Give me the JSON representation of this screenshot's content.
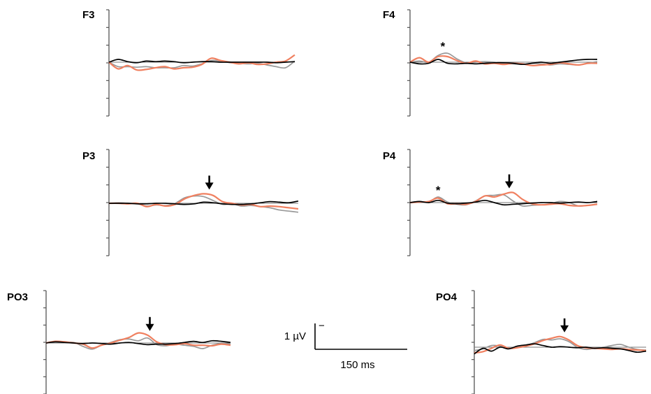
{
  "chart_data": [
    {
      "type": "line",
      "title": "F3",
      "x_unit": "ms",
      "y_unit": "µV",
      "x": [
        0,
        20,
        40,
        60,
        80,
        100,
        120,
        140,
        160,
        180,
        200,
        220,
        240,
        260,
        280,
        300,
        320,
        340,
        360,
        380,
        400
      ],
      "series": [
        {
          "color": "#000000",
          "values": [
            0.0,
            0.5,
            0.1,
            -0.1,
            0.2,
            0.1,
            0.2,
            0.1,
            -0.1,
            0.0,
            0.1,
            0.1,
            0.0,
            0.0,
            0.0,
            0.0,
            0.0,
            0.0,
            -0.1,
            0.0,
            0.1
          ]
        },
        {
          "color": "#f08060",
          "values": [
            0.0,
            -1.2,
            -0.6,
            -1.4,
            -1.3,
            -1.0,
            -0.8,
            -1.2,
            -1.0,
            -0.9,
            -0.4,
            0.7,
            0.3,
            0.0,
            -0.3,
            -0.1,
            -0.4,
            -0.3,
            0.0,
            0.2,
            1.3
          ]
        },
        {
          "color": "#999999",
          "values": [
            0.0,
            -0.8,
            -0.8,
            -0.9,
            -0.8,
            -1.0,
            -1.0,
            -1.0,
            -0.6,
            -0.7,
            -0.3,
            0.3,
            0.2,
            -0.1,
            -0.2,
            -0.3,
            -0.2,
            -0.5,
            -0.8,
            -1.0,
            0.2
          ]
        }
      ],
      "ylim": [
        -6,
        6
      ],
      "annotations": []
    },
    {
      "type": "line",
      "title": "F4",
      "x_unit": "ms",
      "y_unit": "µV",
      "x": [
        0,
        20,
        40,
        60,
        80,
        100,
        120,
        140,
        160,
        180,
        200,
        220,
        240,
        260,
        280,
        300,
        320,
        340,
        360,
        380,
        400
      ],
      "series": [
        {
          "color": "#000000",
          "values": [
            0.0,
            -0.3,
            -0.2,
            0.5,
            -0.2,
            -0.3,
            -0.2,
            -0.3,
            -0.2,
            -0.1,
            -0.1,
            -0.2,
            -0.4,
            -0.2,
            0.0,
            -0.2,
            0.0,
            0.2,
            0.4,
            0.5,
            0.5
          ]
        },
        {
          "color": "#f08060",
          "values": [
            0.0,
            0.8,
            0.0,
            1.0,
            1.0,
            0.3,
            -0.2,
            0.2,
            -0.3,
            -0.2,
            -0.4,
            -0.2,
            -0.3,
            -0.6,
            -0.5,
            -0.4,
            -0.1,
            -0.3,
            -0.5,
            -0.2,
            -0.2
          ]
        },
        {
          "color": "#999999",
          "values": [
            0.0,
            0.2,
            0.0,
            1.2,
            1.6,
            0.6,
            -0.1,
            0.0,
            0.1,
            0.0,
            -0.3,
            -0.3,
            -0.4,
            -0.2,
            -0.3,
            -0.5,
            -0.3,
            -0.4,
            -0.5,
            -0.2,
            0.1
          ]
        }
      ],
      "ylim": [
        -6,
        6
      ],
      "annotations": [
        {
          "text": "*",
          "x": 70
        }
      ]
    },
    {
      "type": "line",
      "title": "P3",
      "x_unit": "ms",
      "y_unit": "µV",
      "x": [
        0,
        20,
        40,
        60,
        80,
        100,
        120,
        140,
        160,
        180,
        200,
        220,
        240,
        260,
        280,
        300,
        320,
        340,
        360,
        380,
        400
      ],
      "series": [
        {
          "color": "#000000",
          "values": [
            0.0,
            0.0,
            0.0,
            -0.1,
            -0.1,
            0.0,
            0.0,
            -0.1,
            -0.2,
            -0.1,
            0.2,
            0.1,
            -0.1,
            -0.2,
            -0.2,
            -0.1,
            0.1,
            0.3,
            0.2,
            0.1,
            0.4
          ]
        },
        {
          "color": "#f08060",
          "values": [
            0.0,
            0.0,
            -0.1,
            0.0,
            -0.6,
            -0.2,
            -0.5,
            -0.2,
            0.8,
            1.4,
            1.7,
            1.4,
            0.3,
            0.0,
            -0.3,
            -0.2,
            -0.6,
            -0.5,
            -0.6,
            -0.8,
            -1.0
          ]
        },
        {
          "color": "#999999",
          "values": [
            0.0,
            0.1,
            0.0,
            -0.1,
            -0.5,
            -0.3,
            -0.4,
            0.0,
            1.0,
            1.3,
            1.2,
            0.5,
            -0.2,
            -0.1,
            -0.5,
            -0.4,
            -0.6,
            -0.8,
            -1.2,
            -1.4,
            -1.6
          ]
        }
      ],
      "ylim": [
        -6,
        6
      ],
      "annotations": [
        {
          "text": "arrow",
          "x": 212
        }
      ]
    },
    {
      "type": "line",
      "title": "P4",
      "x_unit": "ms",
      "y_unit": "µV",
      "x": [
        0,
        20,
        40,
        60,
        80,
        100,
        120,
        140,
        160,
        180,
        200,
        220,
        240,
        260,
        280,
        300,
        320,
        340,
        360,
        380,
        400
      ],
      "series": [
        {
          "color": "#000000",
          "values": [
            0.0,
            0.2,
            0.0,
            0.4,
            -0.1,
            -0.2,
            -0.1,
            0.1,
            0.4,
            0.0,
            -0.4,
            -0.3,
            -0.2,
            -0.1,
            0.0,
            0.0,
            -0.1,
            0.0,
            0.1,
            0.0,
            0.2
          ]
        },
        {
          "color": "#f08060",
          "values": [
            0.0,
            0.1,
            0.2,
            0.8,
            -0.2,
            -0.2,
            -0.3,
            0.2,
            1.2,
            1.0,
            1.5,
            1.8,
            0.6,
            -0.2,
            -0.4,
            -0.3,
            -0.2,
            -0.5,
            -0.6,
            -0.5,
            -0.3
          ]
        },
        {
          "color": "#999999",
          "values": [
            0.0,
            0.2,
            0.1,
            1.0,
            0.1,
            -0.3,
            -0.4,
            0.3,
            1.2,
            1.3,
            1.4,
            0.3,
            -0.6,
            -0.5,
            -0.4,
            -0.2,
            0.2,
            0.0,
            -0.6,
            -0.5,
            -0.3
          ]
        }
      ],
      "ylim": [
        -6,
        6
      ],
      "annotations": [
        {
          "text": "*",
          "x": 60
        },
        {
          "text": "arrow",
          "x": 212
        }
      ]
    },
    {
      "type": "line",
      "title": "PO3",
      "x_unit": "ms",
      "y_unit": "µV",
      "x": [
        0,
        20,
        40,
        60,
        80,
        100,
        120,
        140,
        160,
        180,
        200,
        220,
        240,
        260,
        280,
        300,
        320,
        340,
        360,
        380,
        400
      ],
      "series": [
        {
          "color": "#000000",
          "values": [
            0.0,
            0.2,
            0.1,
            0.0,
            -0.1,
            0.0,
            -0.1,
            -0.2,
            0.0,
            0.1,
            -0.1,
            -0.3,
            -0.2,
            -0.2,
            -0.1,
            0.1,
            0.3,
            0.1,
            0.4,
            0.3,
            0.1
          ]
        },
        {
          "color": "#f08060",
          "values": [
            0.0,
            0.3,
            0.2,
            0.0,
            -0.2,
            -0.9,
            -0.4,
            0.0,
            0.5,
            1.0,
            1.8,
            1.4,
            0.2,
            -0.3,
            -0.3,
            -0.1,
            -0.4,
            -0.4,
            -0.5,
            -0.2,
            -0.4
          ]
        },
        {
          "color": "#999999",
          "values": [
            0.0,
            0.2,
            0.1,
            0.1,
            -0.6,
            -1.1,
            -0.4,
            0.1,
            0.6,
            0.7,
            0.4,
            0.9,
            -0.3,
            -0.5,
            -0.2,
            -0.4,
            -0.6,
            -1.0,
            -0.4,
            -0.1,
            -0.2
          ]
        }
      ],
      "ylim": [
        -6,
        6
      ],
      "annotations": [
        {
          "text": "arrow",
          "x": 225
        }
      ]
    },
    {
      "type": "line",
      "title": "PO4",
      "x_unit": "ms",
      "y_unit": "µV",
      "x": [
        0,
        20,
        40,
        60,
        80,
        100,
        120,
        140,
        160,
        180,
        200,
        220,
        240,
        260,
        280,
        300,
        320,
        340,
        360,
        380,
        400
      ],
      "series": [
        {
          "color": "#000000",
          "values": [
            -1.2,
            -0.2,
            -0.7,
            0.0,
            -0.3,
            0.2,
            0.4,
            0.6,
            0.3,
            0.0,
            0.1,
            0.0,
            -0.1,
            0.0,
            -0.2,
            -0.1,
            -0.2,
            -0.3,
            -0.6,
            -0.9,
            -0.7
          ]
        },
        {
          "color": "#f08060",
          "values": [
            -1.0,
            -0.8,
            -0.2,
            0.4,
            -0.2,
            -0.1,
            0.2,
            0.6,
            1.2,
            1.6,
            1.9,
            1.3,
            0.3,
            -0.1,
            -0.2,
            -0.3,
            -0.4,
            -0.3,
            -0.4,
            -0.5,
            -0.6
          ]
        },
        {
          "color": "#999999",
          "values": [
            -0.6,
            -0.3,
            0.3,
            0.2,
            -0.1,
            0.0,
            0.3,
            0.8,
            1.4,
            1.3,
            1.5,
            1.0,
            0.0,
            -0.4,
            -0.2,
            0.0,
            0.3,
            0.5,
            0.0,
            -0.4,
            -0.5
          ]
        }
      ],
      "ylim": [
        -6,
        6
      ],
      "annotations": [
        {
          "text": "arrow",
          "x": 210
        }
      ]
    }
  ],
  "scale_bar": {
    "voltage_label": "1 µV",
    "voltage_sign": "−",
    "time_label": "150 ms"
  }
}
